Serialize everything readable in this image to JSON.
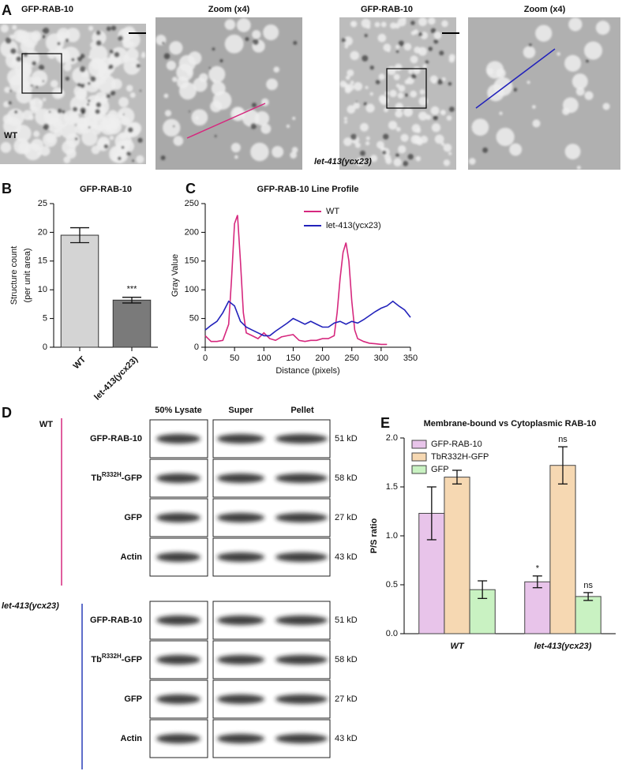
{
  "images": {
    "panel": "A",
    "groups": [
      {
        "title": "GFP-RAB-10",
        "zoom_title": "Zoom (x4)",
        "label": "WT"
      },
      {
        "title": "GFP-RAB-10",
        "zoom_title": "Zoom (x4)",
        "label": "let-413(ycx23)"
      }
    ]
  },
  "chart_data": [
    {
      "panel": "B",
      "type": "bar",
      "title": "GFP-RAB-10",
      "ylabel": [
        "Structure count",
        "(per unit area)"
      ],
      "categories": [
        "WT",
        "let-413(ycx23)"
      ],
      "values": [
        19.5,
        8.2
      ],
      "errors": [
        1.3,
        0.5
      ],
      "significance": [
        null,
        "***"
      ],
      "colors": [
        "#d4d4d4",
        "#7a7a7a"
      ],
      "ylim": [
        0,
        25
      ],
      "yticks": [
        0,
        5,
        10,
        15,
        20,
        25
      ]
    },
    {
      "panel": "C",
      "type": "line",
      "title": "GFP-RAB-10 Line Profile",
      "xlabel": "Distance (pixels)",
      "ylabel": "Gray Value",
      "legend": "upper right",
      "xlim": [
        0,
        350
      ],
      "xticks": [
        0,
        50,
        100,
        150,
        200,
        250,
        300,
        350
      ],
      "ylim": [
        0,
        250
      ],
      "yticks": [
        0,
        50,
        100,
        150,
        200,
        250
      ],
      "series": [
        {
          "name": "WT",
          "color": "#d6287e",
          "x": [
            0,
            10,
            20,
            30,
            40,
            45,
            50,
            55,
            60,
            65,
            70,
            80,
            90,
            100,
            110,
            120,
            130,
            140,
            150,
            160,
            170,
            180,
            190,
            200,
            210,
            220,
            225,
            230,
            235,
            240,
            245,
            250,
            255,
            260,
            270,
            280,
            290,
            300,
            310
          ],
          "values": [
            20,
            10,
            10,
            12,
            40,
            120,
            215,
            230,
            150,
            60,
            25,
            20,
            15,
            25,
            15,
            12,
            18,
            20,
            22,
            12,
            10,
            12,
            12,
            15,
            15,
            20,
            60,
            120,
            165,
            182,
            150,
            80,
            30,
            15,
            10,
            7,
            6,
            5,
            5
          ]
        },
        {
          "name": "let-413(ycx23)",
          "color": "#2222bb",
          "x": [
            0,
            10,
            20,
            30,
            40,
            50,
            60,
            70,
            80,
            90,
            100,
            110,
            120,
            130,
            140,
            150,
            160,
            170,
            180,
            190,
            200,
            210,
            220,
            230,
            240,
            250,
            260,
            270,
            280,
            290,
            300,
            310,
            320,
            330,
            340,
            350
          ],
          "values": [
            30,
            38,
            45,
            60,
            80,
            72,
            45,
            35,
            30,
            25,
            20,
            20,
            28,
            35,
            42,
            50,
            45,
            40,
            45,
            40,
            35,
            35,
            42,
            45,
            40,
            45,
            42,
            48,
            55,
            62,
            68,
            72,
            80,
            72,
            65,
            52
          ]
        }
      ]
    },
    {
      "panel": "E",
      "type": "bar",
      "title": "Membrane-bound vs Cytoplasmic RAB-10",
      "ylabel": "P/S ratio",
      "categories": [
        "WT",
        "let-413(ycx23)"
      ],
      "legend": "upper left",
      "ylim": [
        0,
        2
      ],
      "yticks": [
        {
          "value": 0,
          "label": "0.0"
        },
        0.5,
        {
          "value": 1,
          "label": "1.0"
        },
        1.5,
        {
          "value": 2,
          "label": "2.0"
        }
      ],
      "series": [
        {
          "name": "GFP-RAB-10",
          "color": "#e8c4ea",
          "values": [
            1.23,
            0.53
          ],
          "errors": [
            0.27,
            0.06
          ],
          "significance": [
            null,
            "*"
          ]
        },
        {
          "name": "TbR332H-GFP",
          "color": "#f6d8b2",
          "values": [
            1.6,
            1.72
          ],
          "errors": [
            0.07,
            0.19
          ],
          "significance": [
            null,
            "ns"
          ]
        },
        {
          "name": "GFP",
          "color": "#c9f2c2",
          "values": [
            0.45,
            0.38
          ],
          "errors": [
            0.09,
            0.04
          ],
          "significance": [
            null,
            "ns"
          ]
        }
      ]
    }
  ],
  "blots": {
    "panel": "D",
    "columns": [
      "50% Lysate",
      "Super",
      "Pellet"
    ],
    "groups": [
      {
        "label": "WT",
        "color": "#d6287e",
        "rows": [
          {
            "name": "GFP-RAB-10",
            "size": "51 kD"
          },
          {
            "name": "Tb",
            "name_sup": "R332H",
            "name_end": "-GFP",
            "size": "58 kD"
          },
          {
            "name": "GFP",
            "size": "27 kD"
          },
          {
            "name": "Actin",
            "size": "43 kD"
          }
        ]
      },
      {
        "label": "let-413(ycx23)",
        "color": "#2a3fb8",
        "rows": [
          {
            "name": "GFP-RAB-10",
            "size": "51 kD"
          },
          {
            "name": "Tb",
            "name_sup": "R332H",
            "name_end": "-GFP",
            "size": "58 kD"
          },
          {
            "name": "GFP",
            "size": "27 kD"
          },
          {
            "name": "Actin",
            "size": "43 kD"
          }
        ]
      }
    ]
  }
}
